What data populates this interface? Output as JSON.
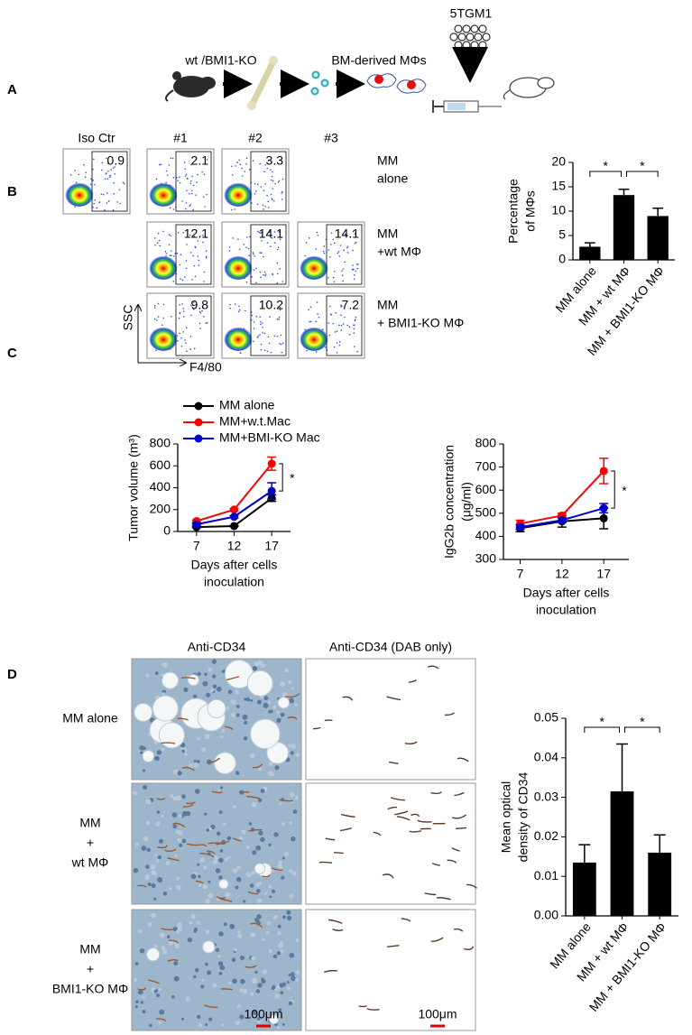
{
  "panel_labels": [
    "A",
    "B",
    "C",
    "D"
  ],
  "schematic": {
    "cell_line": "5TGM1",
    "donor": "wt /BMI1-KO",
    "cells": "BM-derived MΦs"
  },
  "flow": {
    "columns": [
      "Iso Ctr",
      "#1",
      "#2",
      "#3"
    ],
    "rows": [
      {
        "label_lines": [
          "MM",
          "alone"
        ],
        "gates": [
          0.9,
          2.1,
          3.3,
          null
        ]
      },
      {
        "label_lines": [
          "MM",
          "+wt MΦ"
        ],
        "gates": [
          null,
          12.1,
          14.1,
          14.1
        ]
      },
      {
        "label_lines": [
          "MM",
          "+ BMI1-KO MΦ"
        ],
        "gates": [
          null,
          9.8,
          10.2,
          7.2
        ]
      }
    ],
    "y_axis": "SSC",
    "x_axis": "F4/80"
  },
  "histology": {
    "columns": [
      "Anti-CD34",
      "Anti-CD34 (DAB only)"
    ],
    "rows": [
      [
        "MM alone"
      ],
      [
        "MM",
        "+",
        "wt MΦ"
      ],
      [
        "MM",
        "+",
        "BMI1-KO MΦ"
      ]
    ],
    "scale_bar": "100μm"
  },
  "chart_data": [
    {
      "type": "bar",
      "ylabel_lines": [
        "Percentage",
        "of MΦs"
      ],
      "categories": [
        "MM alone",
        "MM + wt MΦ",
        "MM + BMI1-KO MΦ"
      ],
      "values": [
        2.7,
        13.3,
        9.0
      ],
      "errors": [
        0.8,
        1.2,
        1.6
      ],
      "color": "#000000",
      "ylim": [
        0,
        20
      ],
      "yticks": [
        0,
        5,
        10,
        15,
        20
      ],
      "significance": [
        "*",
        "*"
      ]
    },
    {
      "type": "line",
      "ylabel": "Tumor volume (m³)",
      "xlabel_lines": [
        "Days after cells",
        "inoculation"
      ],
      "x": [
        7,
        12,
        17
      ],
      "xlim": [
        4.5,
        19.5
      ],
      "xticks": [
        7,
        12,
        17
      ],
      "ylim": [
        0,
        800
      ],
      "yticks": [
        0,
        200,
        400,
        600,
        800
      ],
      "series": [
        {
          "name": "MM alone",
          "color": "#000000",
          "values": [
            40,
            50,
            305
          ],
          "errors": [
            5,
            5,
            30
          ]
        },
        {
          "name": "MM+w.t.Mac",
          "color": "#ff0000",
          "values": [
            95,
            200,
            620
          ],
          "errors": [
            10,
            10,
            60
          ]
        },
        {
          "name": "MM+BMI-KO Mac",
          "color": "#0000cc",
          "values": [
            65,
            135,
            370
          ],
          "errors": [
            8,
            10,
            75
          ]
        }
      ],
      "significance": "*"
    },
    {
      "type": "line",
      "ylabel_lines": [
        "IgG2b concentration",
        "(μg/ml)"
      ],
      "xlabel_lines": [
        "Days after cells",
        "inoculation"
      ],
      "x": [
        7,
        12,
        17
      ],
      "xlim": [
        5,
        20
      ],
      "xticks": [
        7,
        12,
        17
      ],
      "ylim": [
        300,
        800
      ],
      "yticks": [
        300,
        400,
        500,
        600,
        700,
        800
      ],
      "series": [
        {
          "color": "#000000",
          "values": [
            435,
            465,
            478
          ],
          "errors": [
            15,
            25,
            45
          ]
        },
        {
          "color": "#ff0000",
          "values": [
            455,
            490,
            683
          ],
          "errors": [
            15,
            10,
            55
          ]
        },
        {
          "color": "#0000cc",
          "values": [
            440,
            470,
            522
          ],
          "errors": [
            10,
            10,
            20
          ]
        }
      ],
      "significance": "*"
    },
    {
      "type": "bar",
      "ylabel_lines": [
        "Mean optical",
        "density of CD34"
      ],
      "categories": [
        "MM alone",
        "MM + wt MΦ",
        "MM + BMI1-KO MΦ"
      ],
      "values": [
        0.0135,
        0.0315,
        0.016
      ],
      "errors": [
        0.0045,
        0.012,
        0.0045
      ],
      "color": "#000000",
      "ylim": [
        0,
        0.05
      ],
      "yticks": [
        {
          "value": 0,
          "label": "0.00"
        },
        0.01,
        0.02,
        0.03,
        0.04,
        0.05
      ],
      "significance": [
        "*",
        "*"
      ]
    }
  ]
}
